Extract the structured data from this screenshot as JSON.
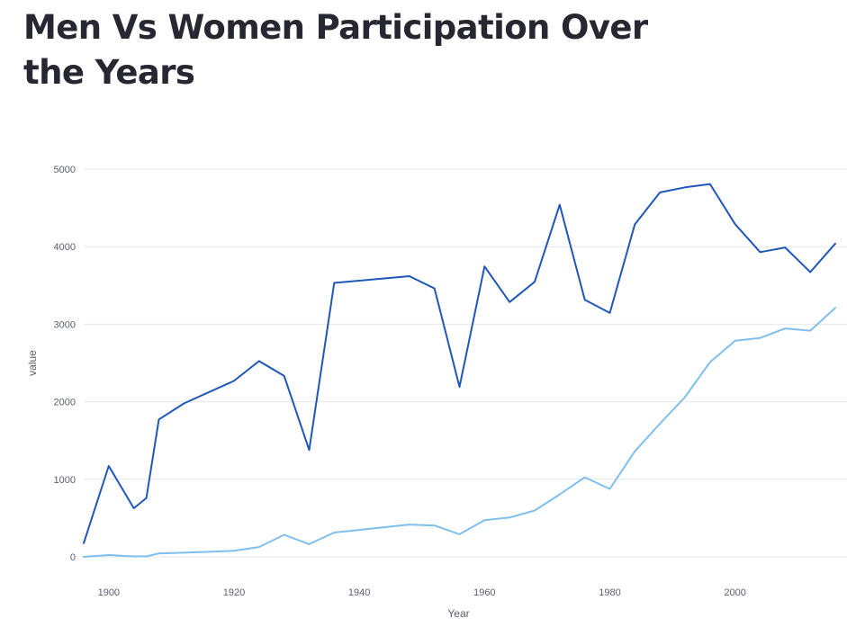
{
  "page": {
    "title": "Men Vs Women Participation Over the Years"
  },
  "chart_data": {
    "type": "line",
    "title": "",
    "xlabel": "Year",
    "ylabel": "value",
    "xlim": [
      1896,
      2016
    ],
    "ylim": [
      0,
      5000
    ],
    "xticks": [
      1900,
      1920,
      1940,
      1960,
      1980,
      2000
    ],
    "yticks": [
      0,
      1000,
      2000,
      3000,
      4000,
      5000
    ],
    "grid": "horizontal",
    "x": [
      1896,
      1900,
      1904,
      1906,
      1908,
      1912,
      1920,
      1924,
      1928,
      1932,
      1936,
      1948,
      1952,
      1956,
      1960,
      1964,
      1968,
      1972,
      1976,
      1980,
      1984,
      1988,
      1992,
      1996,
      2000,
      2004,
      2008,
      2012,
      2016
    ],
    "series": [
      {
        "color": "#1f57b8",
        "values": [
          176,
          1172,
          627,
          759,
          1772,
          1978,
          2269,
          2524,
          2333,
          1378,
          3533,
          3620,
          3462,
          2191,
          3745,
          3285,
          3546,
          4541,
          3314,
          3145,
          4288,
          4700,
          4765,
          4807,
          4290,
          3929,
          3990,
          3672,
          4040
        ]
      },
      {
        "color": "#7fbfed",
        "values": [
          0,
          23,
          6,
          6,
          44,
          53,
          78,
          126,
          284,
          164,
          313,
          416,
          404,
          291,
          472,
          507,
          598,
          805,
          1025,
          876,
          1361,
          1717,
          2060,
          2511,
          2787,
          2822,
          2945,
          2917,
          3210
        ]
      }
    ]
  }
}
